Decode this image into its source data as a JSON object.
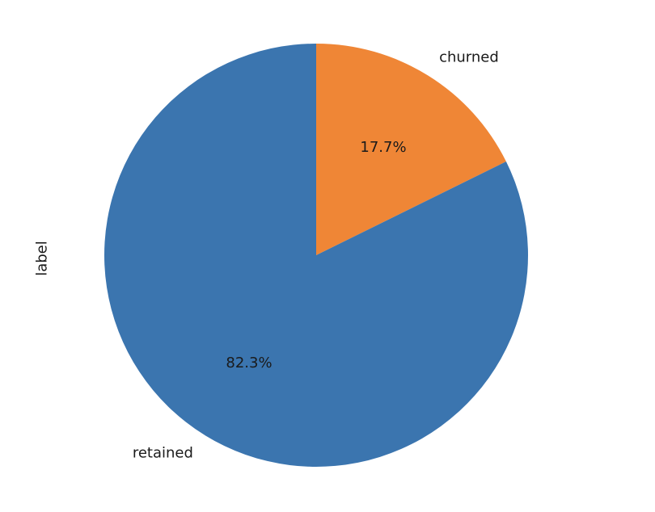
{
  "chart_data": {
    "type": "pie",
    "ylabel": "label",
    "categories": [
      "churned",
      "retained"
    ],
    "values": [
      17.7,
      82.3
    ],
    "pct_labels": [
      "17.7%",
      "82.3%"
    ],
    "colors": [
      "#ef8636",
      "#3b75af"
    ],
    "start_angle_deg": 90,
    "direction": "clockwise",
    "legend": "none"
  }
}
